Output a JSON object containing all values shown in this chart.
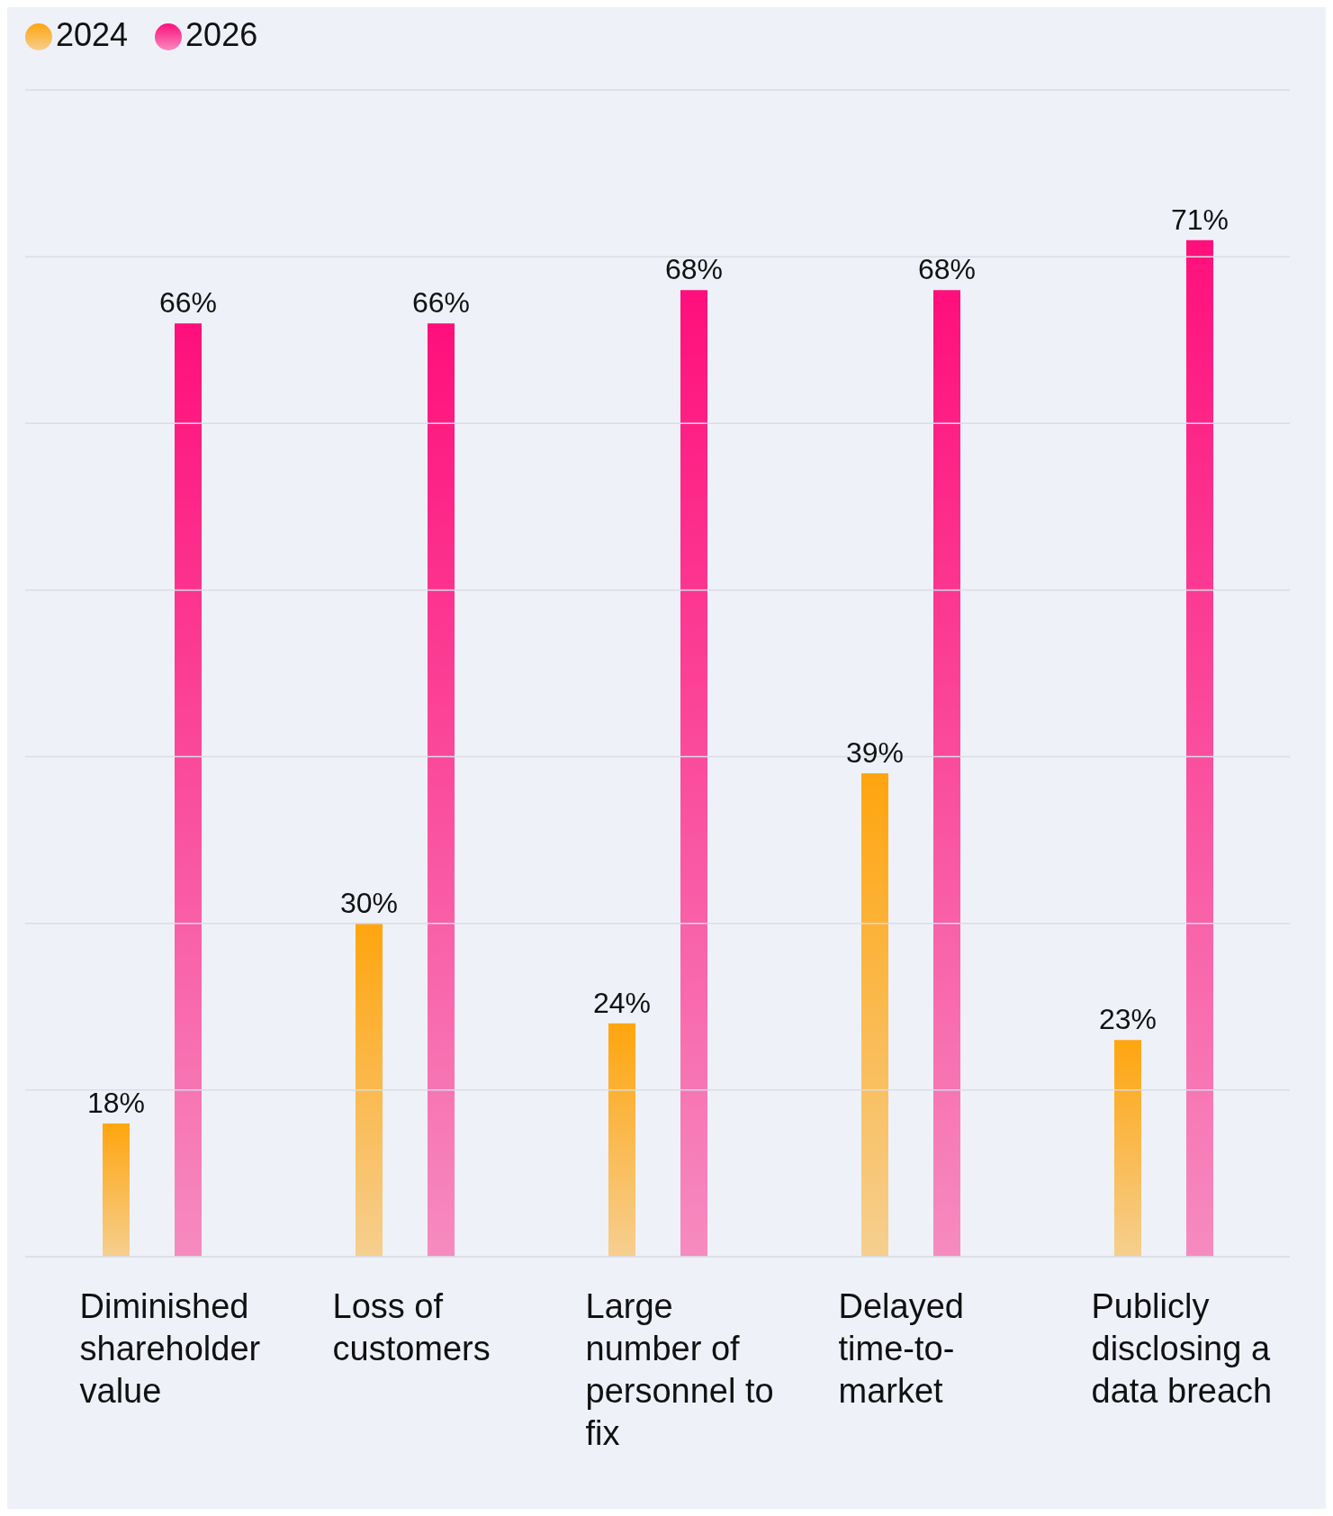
{
  "chart_data": {
    "type": "bar",
    "categories": [
      "Diminished shareholder value",
      "Loss of customers",
      "Large number of personnel to fix",
      "Delayed time-to-market",
      "Publicly disclosing a data breach"
    ],
    "series": [
      {
        "name": "2024",
        "color": "#ffa50f",
        "values": [
          18,
          30,
          24,
          39,
          23
        ],
        "value_labels": [
          "18%",
          "30%",
          "24%",
          "39%",
          "23%"
        ]
      },
      {
        "name": "2026",
        "color": "#ff0f7b",
        "values": [
          66,
          66,
          68,
          68,
          71
        ],
        "value_labels": [
          "66%",
          "66%",
          "68%",
          "68%",
          "71%"
        ]
      }
    ],
    "ylim": [
      10,
      80
    ],
    "yticks": [
      {
        "value": 10,
        "label": null
      },
      {
        "value": 20,
        "label": null
      },
      {
        "value": 30,
        "label": null
      },
      {
        "value": 40,
        "label": null
      },
      {
        "value": 50,
        "label": null
      },
      {
        "value": 60,
        "label": null
      },
      {
        "value": 70,
        "label": null
      },
      {
        "value": 80,
        "label": null
      }
    ],
    "tick_labels": "x",
    "grid": "y",
    "legend": "top left"
  }
}
